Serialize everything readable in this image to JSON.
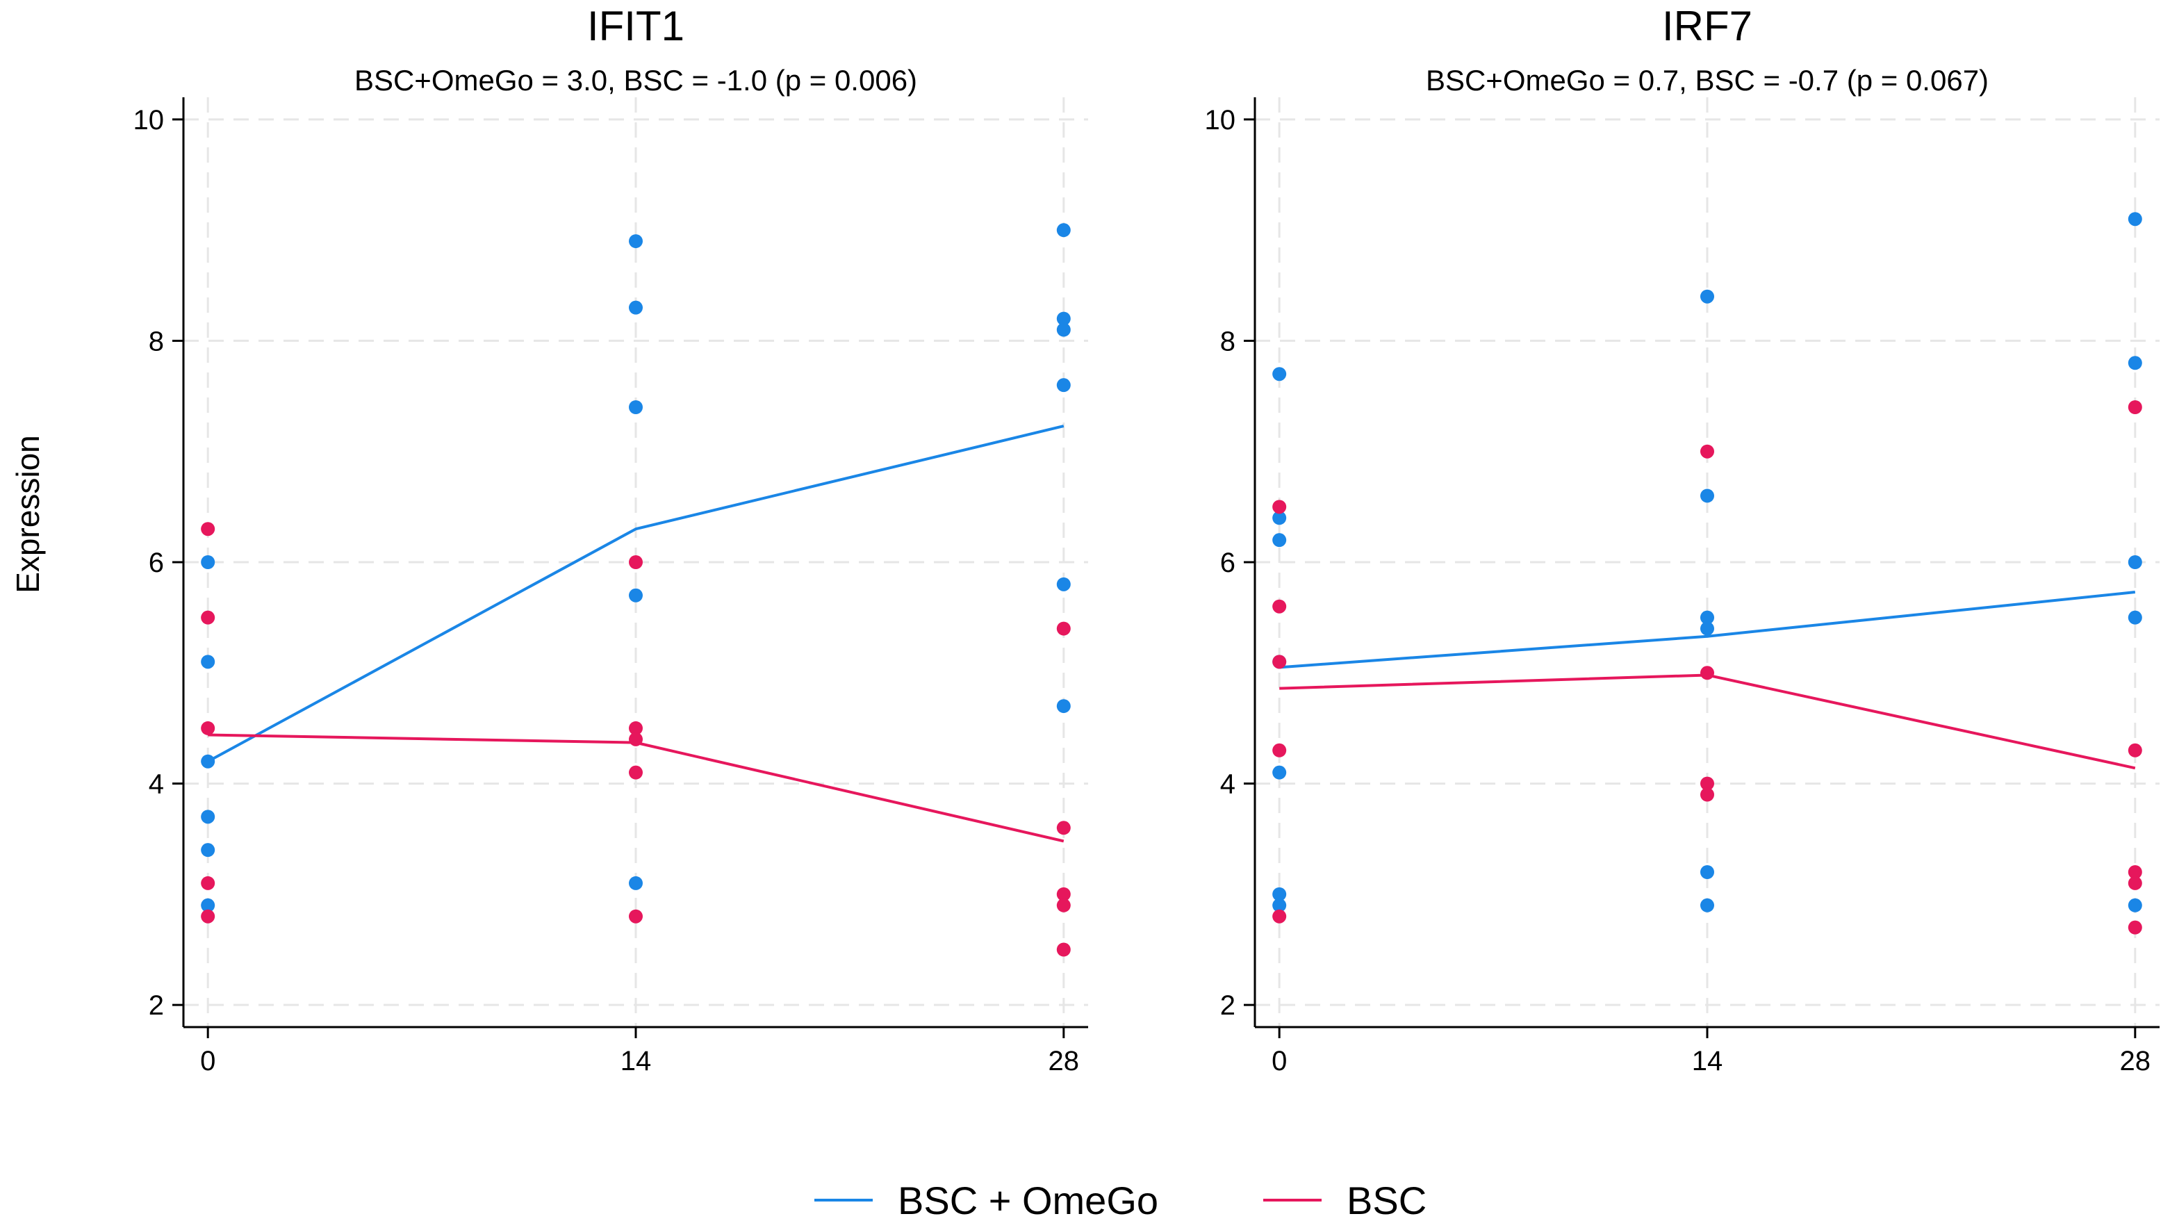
{
  "chart_data": [
    {
      "type": "line",
      "title": "IFIT1",
      "subtitle": "BSC+OmeGo = 3.0,  BSC = -1.0 (p = 0.006)",
      "xlabel": "",
      "ylabel": "Expression",
      "x_ticks": [
        0,
        14,
        28
      ],
      "y_ticks": [
        2,
        4,
        6,
        8,
        10
      ],
      "xlim": [
        -0.8,
        28.8
      ],
      "ylim": [
        1.8,
        10.2
      ],
      "grid": true,
      "series": [
        {
          "name": "BSC + OmeGo",
          "color": "#1a86e6",
          "line": [
            {
              "x": 0,
              "y": 4.2
            },
            {
              "x": 14,
              "y": 6.3
            },
            {
              "x": 28,
              "y": 7.23
            }
          ],
          "points": [
            {
              "x": 0,
              "y": 6.0
            },
            {
              "x": 0,
              "y": 5.1
            },
            {
              "x": 0,
              "y": 4.2
            },
            {
              "x": 0,
              "y": 3.7
            },
            {
              "x": 0,
              "y": 3.4
            },
            {
              "x": 0,
              "y": 2.9
            },
            {
              "x": 14,
              "y": 8.9
            },
            {
              "x": 14,
              "y": 8.3
            },
            {
              "x": 14,
              "y": 7.4
            },
            {
              "x": 14,
              "y": 5.7
            },
            {
              "x": 14,
              "y": 3.1
            },
            {
              "x": 28,
              "y": 9.0
            },
            {
              "x": 28,
              "y": 8.2
            },
            {
              "x": 28,
              "y": 8.1
            },
            {
              "x": 28,
              "y": 7.6
            },
            {
              "x": 28,
              "y": 5.8
            },
            {
              "x": 28,
              "y": 4.7
            }
          ]
        },
        {
          "name": "BSC",
          "color": "#e6175c",
          "line": [
            {
              "x": 0,
              "y": 4.44
            },
            {
              "x": 14,
              "y": 4.37
            },
            {
              "x": 28,
              "y": 3.48
            }
          ],
          "points": [
            {
              "x": 0,
              "y": 6.3
            },
            {
              "x": 0,
              "y": 5.5
            },
            {
              "x": 0,
              "y": 4.5
            },
            {
              "x": 0,
              "y": 3.1
            },
            {
              "x": 0,
              "y": 2.8
            },
            {
              "x": 14,
              "y": 6.0
            },
            {
              "x": 14,
              "y": 4.5
            },
            {
              "x": 14,
              "y": 4.4
            },
            {
              "x": 14,
              "y": 4.1
            },
            {
              "x": 14,
              "y": 2.8
            },
            {
              "x": 28,
              "y": 5.4
            },
            {
              "x": 28,
              "y": 3.6
            },
            {
              "x": 28,
              "y": 3.0
            },
            {
              "x": 28,
              "y": 2.9
            },
            {
              "x": 28,
              "y": 2.5
            }
          ]
        }
      ]
    },
    {
      "type": "line",
      "title": "IRF7",
      "subtitle": "BSC+OmeGo = 0.7,  BSC = -0.7 (p = 0.067)",
      "xlabel": "",
      "ylabel": "",
      "x_ticks": [
        0,
        14,
        28
      ],
      "y_ticks": [
        2,
        4,
        6,
        8,
        10
      ],
      "xlim": [
        -0.8,
        28.8
      ],
      "ylim": [
        1.8,
        10.2
      ],
      "grid": true,
      "series": [
        {
          "name": "BSC + OmeGo",
          "color": "#1a86e6",
          "line": [
            {
              "x": 0,
              "y": 5.05
            },
            {
              "x": 14,
              "y": 5.33
            },
            {
              "x": 28,
              "y": 5.73
            }
          ],
          "points": [
            {
              "x": 0,
              "y": 7.7
            },
            {
              "x": 0,
              "y": 6.4
            },
            {
              "x": 0,
              "y": 6.2
            },
            {
              "x": 0,
              "y": 5.1
            },
            {
              "x": 0,
              "y": 4.1
            },
            {
              "x": 0,
              "y": 3.0
            },
            {
              "x": 0,
              "y": 2.9
            },
            {
              "x": 14,
              "y": 8.4
            },
            {
              "x": 14,
              "y": 6.6
            },
            {
              "x": 14,
              "y": 5.5
            },
            {
              "x": 14,
              "y": 5.4
            },
            {
              "x": 14,
              "y": 3.2
            },
            {
              "x": 14,
              "y": 2.9
            },
            {
              "x": 28,
              "y": 9.1
            },
            {
              "x": 28,
              "y": 7.8
            },
            {
              "x": 28,
              "y": 6.0
            },
            {
              "x": 28,
              "y": 5.5
            },
            {
              "x": 28,
              "y": 2.9
            }
          ]
        },
        {
          "name": "BSC",
          "color": "#e6175c",
          "line": [
            {
              "x": 0,
              "y": 4.86
            },
            {
              "x": 14,
              "y": 4.98
            },
            {
              "x": 28,
              "y": 4.14
            }
          ],
          "points": [
            {
              "x": 0,
              "y": 6.5
            },
            {
              "x": 0,
              "y": 5.6
            },
            {
              "x": 0,
              "y": 5.1
            },
            {
              "x": 0,
              "y": 4.3
            },
            {
              "x": 0,
              "y": 2.8
            },
            {
              "x": 14,
              "y": 7.0
            },
            {
              "x": 14,
              "y": 5.0
            },
            {
              "x": 14,
              "y": 4.0
            },
            {
              "x": 14,
              "y": 3.9
            },
            {
              "x": 28,
              "y": 7.4
            },
            {
              "x": 28,
              "y": 4.3
            },
            {
              "x": 28,
              "y": 3.2
            },
            {
              "x": 28,
              "y": 3.1
            },
            {
              "x": 28,
              "y": 2.7
            }
          ]
        }
      ]
    }
  ],
  "legend": {
    "placement": "bottom-center",
    "items": [
      {
        "label": "BSC + OmeGo",
        "color": "#1a86e6"
      },
      {
        "label": "BSC",
        "color": "#e6175c"
      }
    ]
  }
}
